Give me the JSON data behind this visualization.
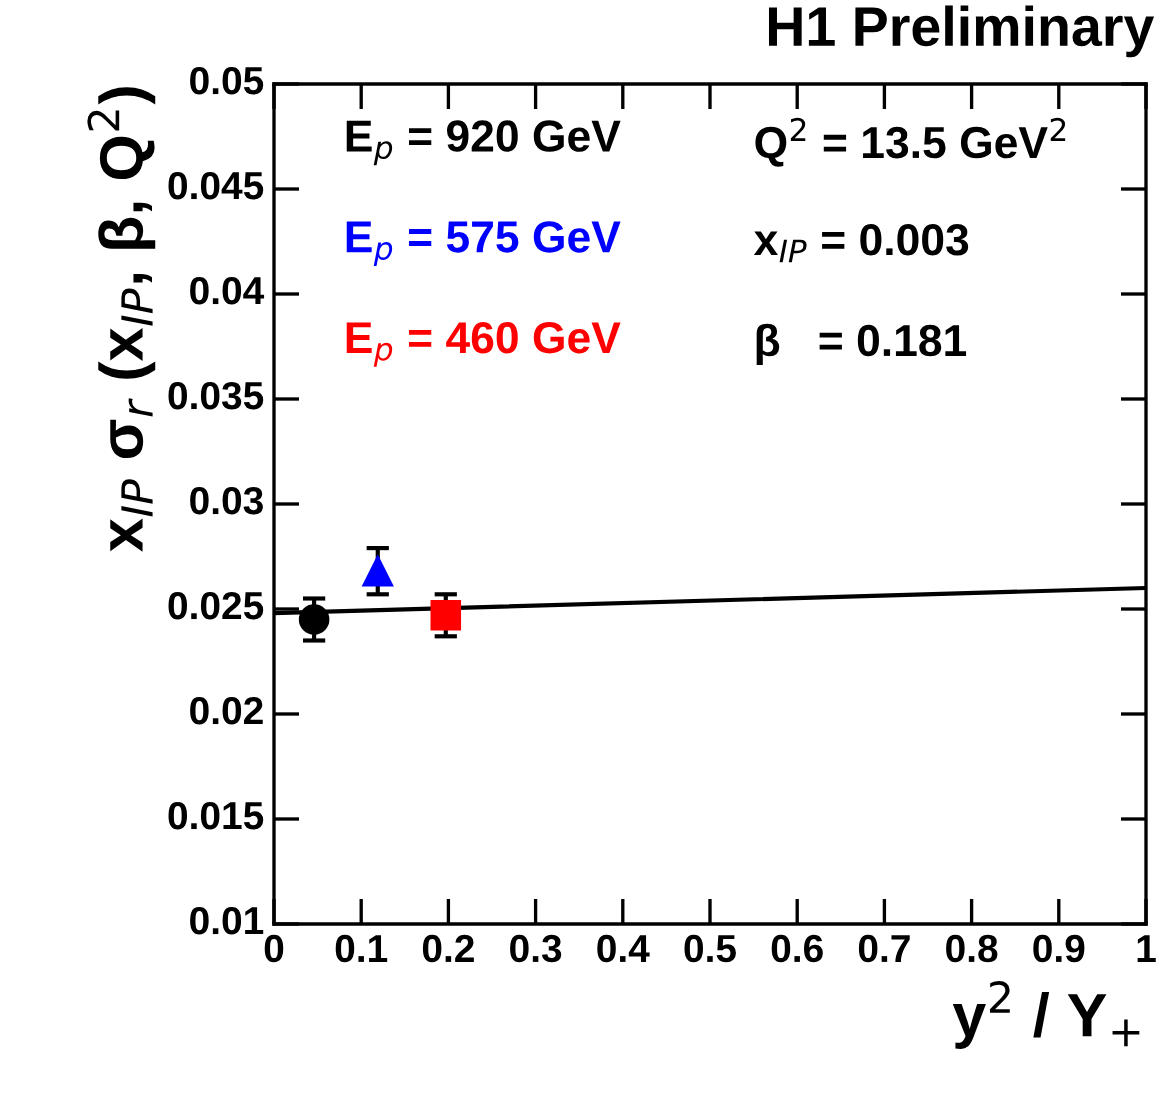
{
  "chart_data": {
    "type": "scatter",
    "title": "H1 Preliminary",
    "xlabel": "y$^{2}$ / Y$_{+}$",
    "ylabel": "x$_{IP}$ σ$_{r}$ (x$_{IP}$, β, Q$^{2}$)",
    "xlim": [
      0,
      1
    ],
    "ylim": [
      0.01,
      0.05
    ],
    "xticks": [
      0,
      0.1,
      0.2,
      0.3,
      0.4,
      0.5,
      0.6,
      0.7,
      0.8,
      0.9,
      1
    ],
    "yticks": [
      0.01,
      0.015,
      0.02,
      0.025,
      0.03,
      0.035,
      0.04,
      0.045,
      0.05
    ],
    "grid": false,
    "legend": "top left",
    "annotations": [
      "Q$^{2}$ = 13.5 GeV$^{2}$",
      "x$_{IP}$ = 0.003",
      "β   = 0.181"
    ],
    "series": [
      {
        "name": "E$_{p}$ = 920 GeV",
        "color": "#000000",
        "x": [
          0.046
        ],
        "values": [
          0.0245
        ],
        "errors": [
          0.001
        ],
        "marker": "circle"
      },
      {
        "name": "E$_{p}$ = 575 GeV",
        "color": "#0000ff",
        "x": [
          0.119
        ],
        "values": [
          0.0268
        ],
        "errors": [
          0.0011
        ],
        "marker": "triangle"
      },
      {
        "name": "E$_{p}$ = 460 GeV",
        "color": "#ff0000",
        "x": [
          0.197
        ],
        "values": [
          0.0247
        ],
        "errors": [
          0.001
        ],
        "marker": "square"
      },
      {
        "type": "line",
        "color": "#000000",
        "x": [
          0,
          1
        ],
        "values": [
          0.0248,
          0.026
        ],
        "marker": "none",
        "line_style": "solid"
      }
    ]
  }
}
